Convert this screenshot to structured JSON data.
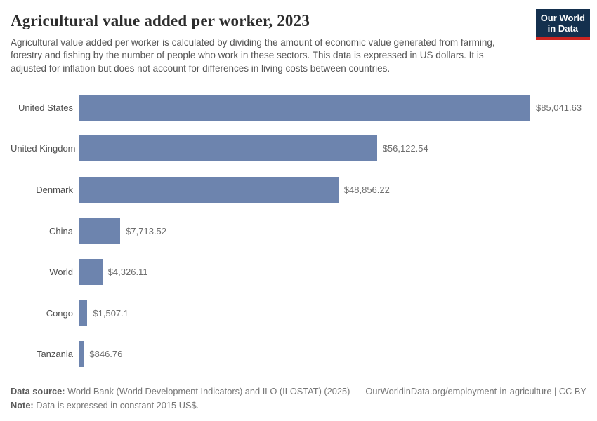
{
  "header": {
    "title": "Agricultural value added per worker, 2023",
    "subtitle": "Agricultural value added per worker is calculated by dividing the amount of economic value generated from farming, forestry and fishing by the number of people who work in these sectors. This data is expressed in US dollars. It is adjusted for inflation but does not account for differences in living costs between countries.",
    "logo": {
      "line1": "Our World",
      "line2": "in Data"
    }
  },
  "chart_data": {
    "type": "bar",
    "orientation": "horizontal",
    "title": "Agricultural value added per worker, 2023",
    "categories": [
      "United States",
      "United Kingdom",
      "Denmark",
      "China",
      "World",
      "Congo",
      "Tanzania"
    ],
    "values": [
      85041.63,
      56122.54,
      48856.22,
      7713.52,
      4326.11,
      1507.1,
      846.76
    ],
    "value_labels": [
      "$85,041.63",
      "$56,122.54",
      "$48,856.22",
      "$7,713.52",
      "$4,326.11",
      "$1,507.1",
      "$846.76"
    ],
    "unit": "constant 2015 US$",
    "xlabel": "",
    "ylabel": "",
    "xlim": [
      0,
      85041.63
    ],
    "grid": false,
    "legend": false,
    "bar_color": "#6d84ae"
  },
  "colors": {
    "bar": "#6d84ae",
    "logo_navy": "#14304e",
    "logo_red": "#cb2420",
    "axis": "#d9d9d9"
  },
  "footer": {
    "source_label": "Data source:",
    "source_text": " World Bank (World Development Indicators) and ILO (ILOSTAT) (2025)",
    "link_text": "OurWorldinData.org/employment-in-agriculture | CC BY",
    "note_label": "Note:",
    "note_text": " Data is expressed in constant 2015 US$."
  }
}
